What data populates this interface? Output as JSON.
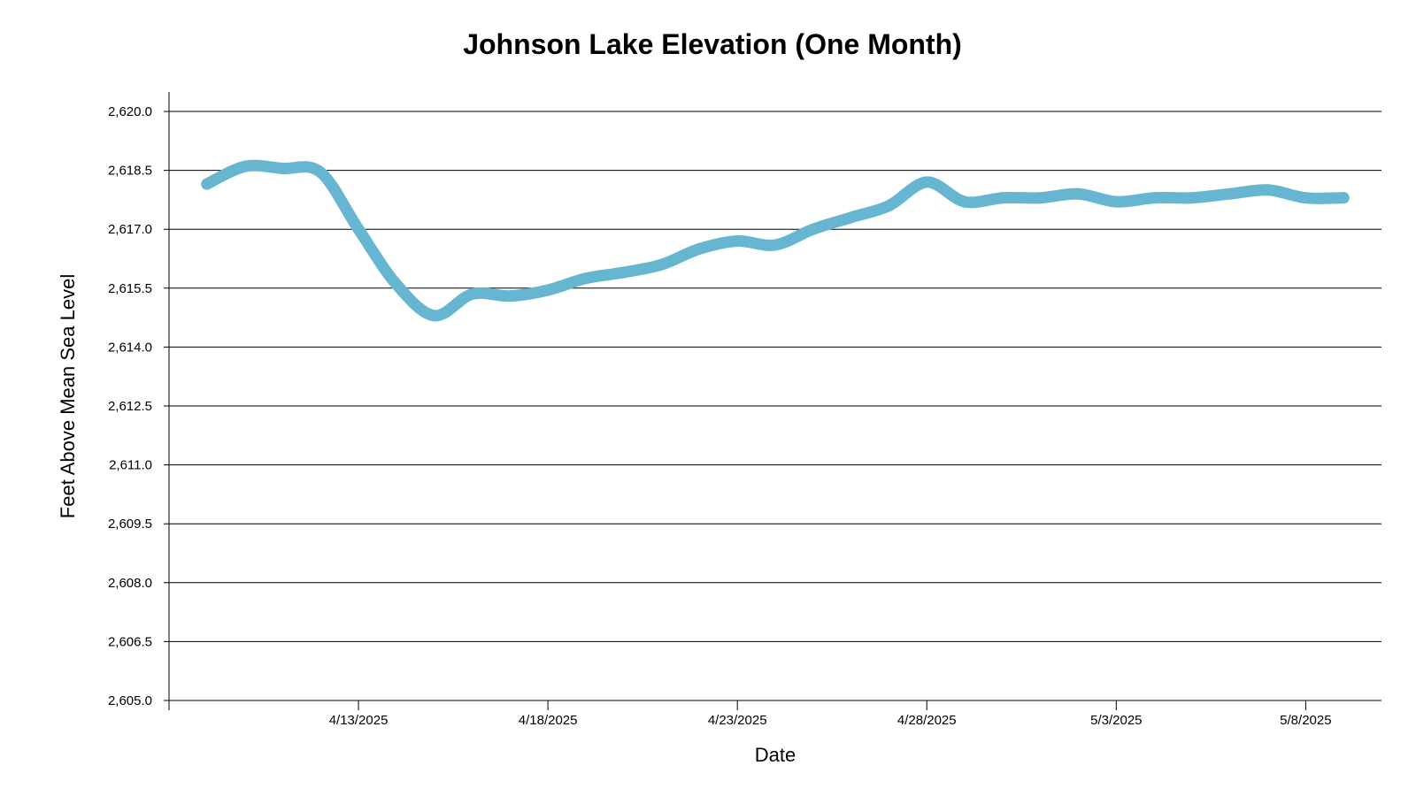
{
  "colors": {
    "series": "#67b6d1",
    "grid": "#000000",
    "background": "#ffffff"
  },
  "chart_data": {
    "type": "line",
    "title": "Johnson Lake Elevation (One Month)",
    "xlabel": "Date",
    "ylabel": "Feet Above Mean Sea Level",
    "ylim": [
      2605.0,
      2620.0
    ],
    "y_ticks": [
      "2,605.0",
      "2,606.5",
      "2,608.0",
      "2,609.5",
      "2,611.0",
      "2,612.5",
      "2,614.0",
      "2,615.5",
      "2,617.0",
      "2,618.5",
      "2,620.0"
    ],
    "x_range": [
      "2025-04-08",
      "2025-05-10"
    ],
    "x_ticks": [
      {
        "date": "2025-04-13",
        "label": "4/13/2025"
      },
      {
        "date": "2025-04-18",
        "label": "4/18/2025"
      },
      {
        "date": "2025-04-23",
        "label": "4/23/2025"
      },
      {
        "date": "2025-04-28",
        "label": "4/28/2025"
      },
      {
        "date": "2025-05-03",
        "label": "5/3/2025"
      },
      {
        "date": "2025-05-08",
        "label": "5/8/2025"
      }
    ],
    "grid": true,
    "legend": "none",
    "series": [
      {
        "points": [
          {
            "x": "2025-04-09",
            "y": 2618.15
          },
          {
            "x": "2025-04-10",
            "y": 2618.6
          },
          {
            "x": "2025-04-11",
            "y": 2618.55
          },
          {
            "x": "2025-04-12",
            "y": 2618.45
          },
          {
            "x": "2025-04-13",
            "y": 2617.0
          },
          {
            "x": "2025-04-14",
            "y": 2615.6
          },
          {
            "x": "2025-04-15",
            "y": 2614.8
          },
          {
            "x": "2025-04-16",
            "y": 2615.35
          },
          {
            "x": "2025-04-17",
            "y": 2615.3
          },
          {
            "x": "2025-04-18",
            "y": 2615.45
          },
          {
            "x": "2025-04-19",
            "y": 2615.75
          },
          {
            "x": "2025-04-20",
            "y": 2615.9
          },
          {
            "x": "2025-04-21",
            "y": 2616.1
          },
          {
            "x": "2025-04-22",
            "y": 2616.5
          },
          {
            "x": "2025-04-23",
            "y": 2616.7
          },
          {
            "x": "2025-04-24",
            "y": 2616.6
          },
          {
            "x": "2025-04-25",
            "y": 2617.0
          },
          {
            "x": "2025-04-26",
            "y": 2617.3
          },
          {
            "x": "2025-04-27",
            "y": 2617.6
          },
          {
            "x": "2025-04-28",
            "y": 2618.2
          },
          {
            "x": "2025-04-29",
            "y": 2617.7
          },
          {
            "x": "2025-04-30",
            "y": 2617.8
          },
          {
            "x": "2025-05-01",
            "y": 2617.8
          },
          {
            "x": "2025-05-02",
            "y": 2617.9
          },
          {
            "x": "2025-05-03",
            "y": 2617.7
          },
          {
            "x": "2025-05-04",
            "y": 2617.8
          },
          {
            "x": "2025-05-05",
            "y": 2617.8
          },
          {
            "x": "2025-05-06",
            "y": 2617.9
          },
          {
            "x": "2025-05-07",
            "y": 2618.0
          },
          {
            "x": "2025-05-08",
            "y": 2617.8
          },
          {
            "x": "2025-05-09",
            "y": 2617.8
          }
        ]
      }
    ]
  }
}
